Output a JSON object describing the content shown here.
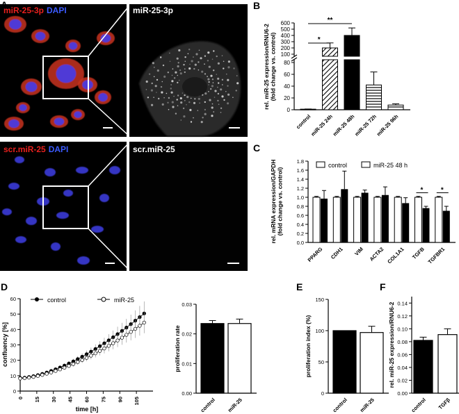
{
  "panel_labels": {
    "A": "A",
    "B": "B",
    "C": "C",
    "D": "D",
    "E": "E",
    "F": "F"
  },
  "micrographs": {
    "top_left": {
      "stain1": "miR-25-3p",
      "stain2": "DAPI"
    },
    "top_right": {
      "label": "miR-25-3p"
    },
    "bottom_left": {
      "stain1": "scr.miR-25",
      "stain2": "DAPI"
    },
    "bottom_right": {
      "label": "scr.miR-25"
    }
  },
  "colors": {
    "red": "#e8201e",
    "blue": "#3b5bff",
    "bar_black": "#000000",
    "micro_bg": "#000000"
  },
  "chart_data": [
    {
      "id": "B",
      "type": "bar",
      "categories": [
        "control",
        "miR-25 24h",
        "miR-25 48h",
        "miR-25 72h",
        "miR-25 96h"
      ],
      "values": [
        1,
        200,
        400,
        42,
        8
      ],
      "errors": [
        0.3,
        80,
        120,
        22,
        2
      ],
      "patterns": [
        "solid-black",
        "diagonal-stripe",
        "solid-black",
        "horizontal-stripe",
        "horizontal-stripe"
      ],
      "ylabel": "rel. miR-25 expression/RNU6-2 (fold change vs. control)",
      "axis": "broken",
      "lower_ticks": [
        "0",
        "20",
        "40",
        "60",
        "80"
      ],
      "upper_ticks": [
        "100",
        "200",
        "300",
        "400",
        "500",
        "600"
      ],
      "significance": [
        {
          "pair": [
            0,
            1
          ],
          "label": "*"
        },
        {
          "pair": [
            0,
            2
          ],
          "label": "**"
        }
      ]
    },
    {
      "id": "C",
      "type": "bar",
      "categories": [
        "PPARG",
        "CDH1",
        "VIM",
        "ACTA2",
        "COL1A1",
        "TGFB",
        "TGFBR1"
      ],
      "series": [
        {
          "name": "control",
          "values": [
            1.0,
            1.0,
            1.0,
            1.0,
            1.0,
            1.0,
            1.0
          ],
          "errors": [
            0.02,
            0.02,
            0.02,
            0.02,
            0.02,
            0.02,
            0.02
          ]
        },
        {
          "name": "miR-25 48 h",
          "values": [
            0.97,
            1.18,
            1.1,
            1.05,
            0.87,
            0.76,
            0.7
          ],
          "errors": [
            0.18,
            0.4,
            0.06,
            0.18,
            0.12,
            0.04,
            0.1
          ]
        }
      ],
      "ylabel": "rel. mRNA expression/GAPDH (fold change vs. control)",
      "ylim": [
        0,
        1.8
      ],
      "ticks": [
        "0.0",
        "0.2",
        "0.4",
        "0.6",
        "0.8",
        "1.0",
        "1.2",
        "1.4",
        "1.6",
        "1.8"
      ],
      "significance": [
        {
          "category": 5,
          "label": "*"
        },
        {
          "category": 6,
          "label": "*"
        }
      ]
    },
    {
      "id": "D-left",
      "type": "line",
      "xlabel": "time [h]",
      "ylabel": "confluency [%]",
      "xlim": [
        0,
        120
      ],
      "ylim": [
        0,
        60
      ],
      "xticks": [
        "0",
        "15",
        "30",
        "45",
        "60",
        "75",
        "90",
        "105"
      ],
      "yticks": [
        "0",
        "10",
        "20",
        "30",
        "40",
        "50",
        "60"
      ],
      "legend": {
        "control": "control",
        "mir25": "miR-25"
      },
      "series": [
        {
          "name": "control",
          "marker": "filled",
          "x_start": 0,
          "x_step": 4,
          "y_start": 8.5,
          "y_end": 51,
          "curve_exp": 1.6,
          "error_frac": 0.12
        },
        {
          "name": "miR-25",
          "marker": "open",
          "x_start": 0,
          "x_step": 4,
          "y_start": 8.2,
          "y_end": 45,
          "curve_exp": 1.6,
          "error_frac": 0.12
        }
      ]
    },
    {
      "id": "D-right",
      "type": "bar",
      "categories": [
        "control",
        "miR-25"
      ],
      "values": [
        0.0235,
        0.0235
      ],
      "errors": [
        0.001,
        0.0015
      ],
      "fills": [
        "#000000",
        "#ffffff"
      ],
      "ylabel": "proliferation rate",
      "ylim": [
        0,
        0.03
      ],
      "ticks": [
        "0.00",
        "0.01",
        "0.02",
        "0.03"
      ]
    },
    {
      "id": "E",
      "type": "bar",
      "categories": [
        "control",
        "miR-25"
      ],
      "values": [
        100,
        97
      ],
      "errors": [
        0,
        10
      ],
      "fills": [
        "#000000",
        "#ffffff"
      ],
      "ylabel": "proliferation index (%)",
      "ylim": [
        0,
        150
      ],
      "ticks": [
        "0",
        "50",
        "100",
        "150"
      ]
    },
    {
      "id": "F",
      "type": "bar",
      "categories": [
        "control",
        "TGFβ"
      ],
      "values": [
        0.082,
        0.091
      ],
      "errors": [
        0.005,
        0.009
      ],
      "fills": [
        "#000000",
        "#ffffff"
      ],
      "ylabel": "rel. miR-25 expression/RNU6-2",
      "ylim": [
        0,
        0.15
      ],
      "ticks": [
        "0.00",
        "0.02",
        "0.04",
        "0.06",
        "0.08",
        "0.10",
        "0.12",
        "0.14"
      ]
    }
  ]
}
